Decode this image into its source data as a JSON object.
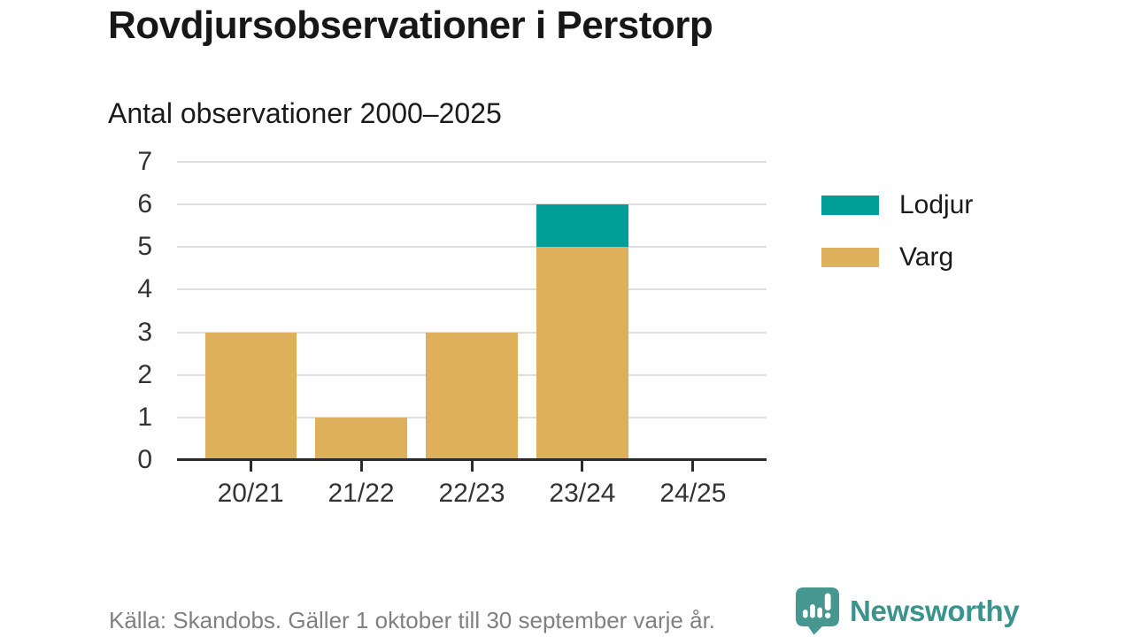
{
  "header": {
    "title": "Rovdjursobservationer i Perstorp",
    "subtitle": "Antal observationer 2000–2025"
  },
  "chart_data": {
    "type": "bar",
    "stacked": true,
    "title": "Rovdjursobservationer i Perstorp",
    "subtitle": "Antal observationer 2000–2025",
    "categories": [
      "20/21",
      "21/22",
      "22/23",
      "23/24",
      "24/25"
    ],
    "series": [
      {
        "name": "Lodjur",
        "color": "#009e96",
        "values": [
          0,
          0,
          0,
          1,
          0
        ]
      },
      {
        "name": "Varg",
        "color": "#deb05c",
        "values": [
          3,
          1,
          3,
          5,
          0
        ]
      }
    ],
    "stack_order_bottom_to_top": [
      "Varg",
      "Lodjur"
    ],
    "totals": [
      3,
      1,
      3,
      6,
      0
    ],
    "xlabel": "",
    "ylabel": "",
    "ylim": [
      0,
      7
    ],
    "yticks": [
      0,
      1,
      2,
      3,
      4,
      5,
      6,
      7
    ],
    "grid": true,
    "legend_position": "right"
  },
  "footer": {
    "source_note": "Källa: Skandobs. Gäller 1 oktober till 30 september varje år."
  },
  "branding": {
    "name": "Newsworthy",
    "icon": "newsworthy-speech-bubble-chart-icon",
    "color": "#3a938d"
  },
  "colors": {
    "axis_line": "#2b2b2b",
    "gridline": "#dedede",
    "axis_text": "#333333",
    "title_text": "#171717",
    "muted_text": "#808080"
  }
}
